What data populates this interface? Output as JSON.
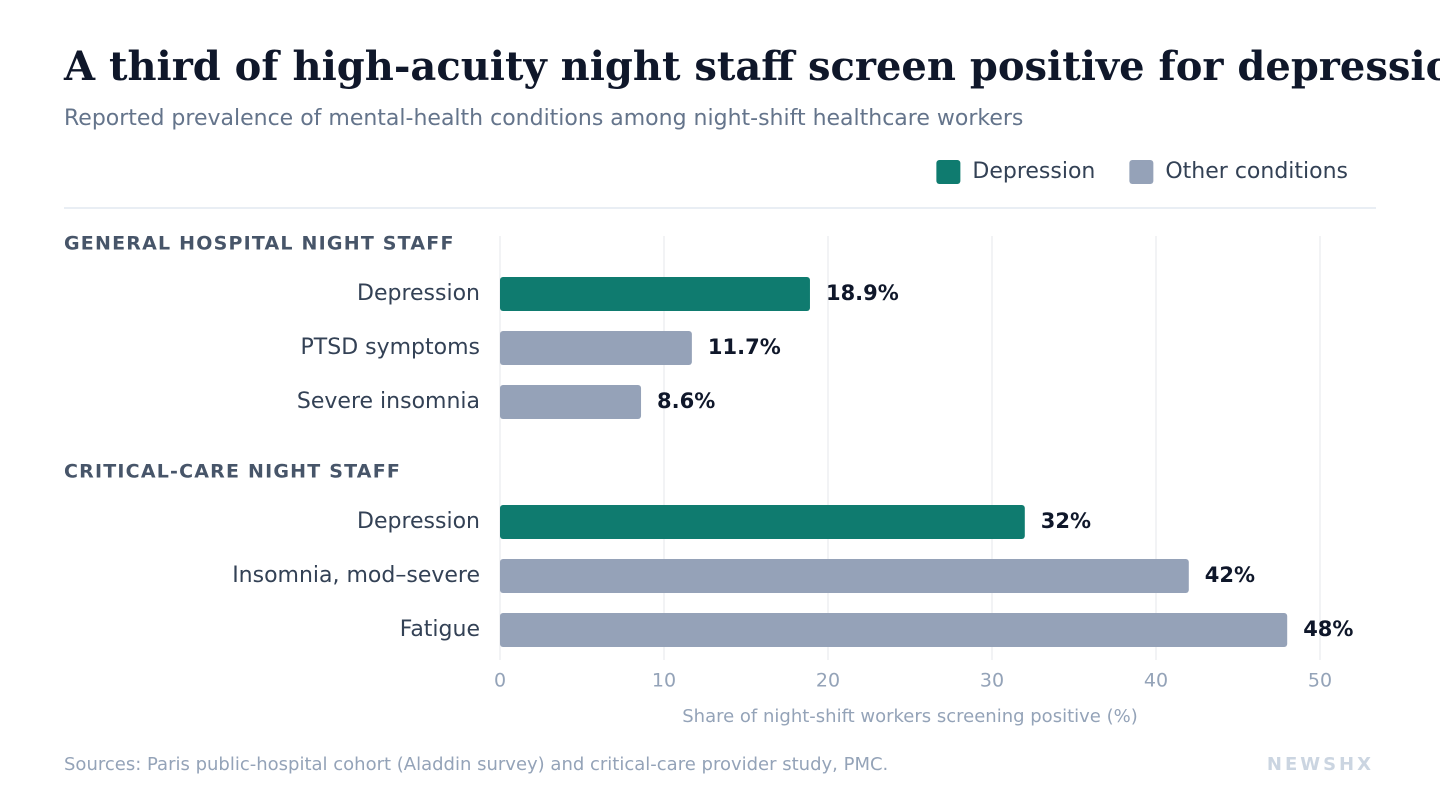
{
  "chart_data": {
    "type": "bar",
    "title": "A third of high-acuity night staff screen positive for depression",
    "subtitle": "Reported prevalence of mental-health conditions among night-shift healthcare workers",
    "legend": [
      {
        "name": "Depression",
        "color": "#0f7b6f"
      },
      {
        "name": "Other conditions",
        "color": "#95a2b8"
      }
    ],
    "groups": [
      {
        "name": "GENERAL HOSPITAL NIGHT STAFF",
        "categories": [
          "Depression",
          "PTSD symptoms",
          "Severe insomnia"
        ],
        "values": [
          18.9,
          11.7,
          8.6
        ],
        "value_labels": [
          "18.9%",
          "11.7%",
          "8.6%"
        ],
        "colors": [
          "#0f7b6f",
          "#95a2b8",
          "#95a2b8"
        ]
      },
      {
        "name": "CRITICAL-CARE NIGHT STAFF",
        "categories": [
          "Depression",
          "Insomnia, mod–severe",
          "Fatigue"
        ],
        "values": [
          32,
          42,
          48
        ],
        "value_labels": [
          "32%",
          "42%",
          "48%"
        ],
        "colors": [
          "#0f7b6f",
          "#95a2b8",
          "#95a2b8"
        ]
      }
    ],
    "xlim": [
      0,
      50
    ],
    "xticks": [
      0,
      10,
      20,
      30,
      40,
      50
    ],
    "xlabel": "Share of night-shift workers screening positive (%)",
    "grid": true,
    "source": "Sources: Paris public-hospital cohort (Aladdin survey) and critical-care provider study, PMC.",
    "brand": "NEWSHX"
  }
}
